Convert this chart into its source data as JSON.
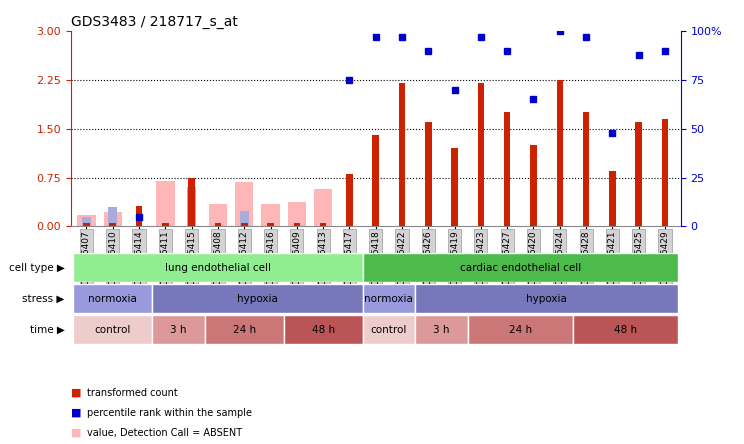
{
  "title": "GDS3483 / 218717_s_at",
  "samples": [
    "GSM286407",
    "GSM286410",
    "GSM286414",
    "GSM286411",
    "GSM286415",
    "GSM286408",
    "GSM286412",
    "GSM286416",
    "GSM286409",
    "GSM286413",
    "GSM286417",
    "GSM286418",
    "GSM286422",
    "GSM286426",
    "GSM286419",
    "GSM286423",
    "GSM286427",
    "GSM286420",
    "GSM286424",
    "GSM286428",
    "GSM286421",
    "GSM286425",
    "GSM286429"
  ],
  "transformed_count": [
    0.05,
    0.05,
    0.32,
    0.05,
    0.75,
    0.05,
    0.05,
    0.05,
    0.05,
    0.05,
    0.8,
    1.4,
    2.2,
    1.6,
    1.2,
    2.2,
    1.75,
    1.25,
    2.25,
    1.75,
    0.85,
    1.6,
    1.65
  ],
  "percentile_rank": [
    null,
    null,
    5,
    null,
    null,
    null,
    null,
    null,
    null,
    null,
    75,
    97,
    97,
    90,
    70,
    97,
    90,
    65,
    100,
    97,
    48,
    88,
    90
  ],
  "absent_value": [
    0.18,
    0.22,
    null,
    0.7,
    null,
    0.35,
    0.68,
    0.35,
    0.38,
    0.58,
    null,
    null,
    null,
    null,
    null,
    null,
    null,
    null,
    null,
    null,
    null,
    null,
    null
  ],
  "absent_rank": [
    5,
    10,
    null,
    null,
    20,
    null,
    8,
    null,
    null,
    null,
    null,
    null,
    null,
    null,
    null,
    null,
    null,
    null,
    null,
    null,
    null,
    null,
    null
  ],
  "ylim_left": [
    0,
    3
  ],
  "ylim_right": [
    0,
    100
  ],
  "yticks_left": [
    0,
    0.75,
    1.5,
    2.25,
    3
  ],
  "yticks_right": [
    0,
    25,
    50,
    75,
    100
  ],
  "cell_type_groups": [
    {
      "label": "lung endothelial cell",
      "start": 0,
      "end": 10,
      "color": "#90EE90"
    },
    {
      "label": "cardiac endothelial cell",
      "start": 11,
      "end": 22,
      "color": "#4CBB4C"
    }
  ],
  "stress_groups": [
    {
      "label": "normoxia",
      "start": 0,
      "end": 2,
      "color": "#9999DD"
    },
    {
      "label": "hypoxia",
      "start": 3,
      "end": 10,
      "color": "#7777BB"
    },
    {
      "label": "normoxia",
      "start": 11,
      "end": 12,
      "color": "#9999DD"
    },
    {
      "label": "hypoxia",
      "start": 13,
      "end": 22,
      "color": "#7777BB"
    }
  ],
  "time_groups": [
    {
      "label": "control",
      "start": 0,
      "end": 2,
      "color": "#EECCCC"
    },
    {
      "label": "3 h",
      "start": 3,
      "end": 4,
      "color": "#DD9999"
    },
    {
      "label": "24 h",
      "start": 5,
      "end": 7,
      "color": "#CC7777"
    },
    {
      "label": "48 h",
      "start": 8,
      "end": 10,
      "color": "#BB5555"
    },
    {
      "label": "control",
      "start": 11,
      "end": 12,
      "color": "#EECCCC"
    },
    {
      "label": "3 h",
      "start": 13,
      "end": 14,
      "color": "#DD9999"
    },
    {
      "label": "24 h",
      "start": 15,
      "end": 18,
      "color": "#CC7777"
    },
    {
      "label": "48 h",
      "start": 19,
      "end": 22,
      "color": "#BB5555"
    }
  ],
  "bar_color": "#CC2200",
  "rank_color": "#0000CC",
  "absent_val_color": "#FFB6B6",
  "absent_rank_color": "#AAAADD",
  "label_color_left": "#CC2200",
  "label_color_right": "#0000CC",
  "row_labels": [
    "cell type",
    "stress",
    "time"
  ],
  "legend": [
    {
      "color": "#CC2200",
      "label": "transformed count"
    },
    {
      "color": "#0000CC",
      "label": "percentile rank within the sample"
    },
    {
      "color": "#FFB6B6",
      "label": "value, Detection Call = ABSENT"
    },
    {
      "color": "#AAAADD",
      "label": "rank, Detection Call = ABSENT"
    }
  ]
}
